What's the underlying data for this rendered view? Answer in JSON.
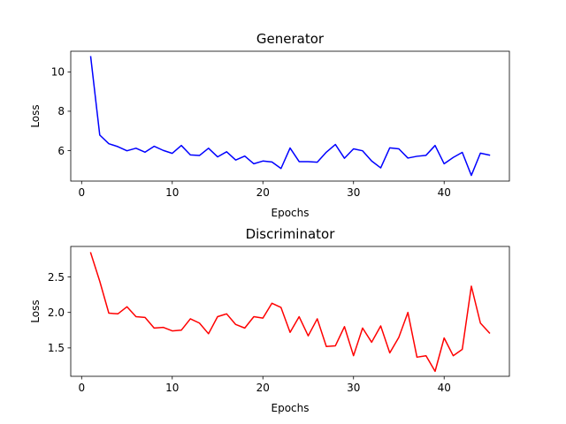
{
  "chart_data": [
    {
      "type": "line",
      "title": "Generator",
      "xlabel": "Epochs",
      "ylabel": "Loss",
      "xlim": [
        -1.2,
        47.2
      ],
      "ylim": [
        4.45,
        11.05
      ],
      "xticks": [
        0,
        10,
        20,
        30,
        40
      ],
      "yticks": [
        6,
        8,
        10
      ],
      "grid": false,
      "color": "#0000ff",
      "series": [
        {
          "x": [
            1,
            2,
            3,
            4,
            5,
            6,
            7,
            8,
            9,
            10,
            11,
            12,
            13,
            14,
            15,
            16,
            17,
            18,
            19,
            20,
            21,
            22,
            23,
            24,
            25,
            26,
            27,
            28,
            29,
            30,
            31,
            32,
            33,
            34,
            35,
            36,
            37,
            38,
            39,
            40,
            41,
            42,
            43,
            44,
            45
          ],
          "values": [
            10.77,
            6.79,
            6.35,
            6.2,
            5.99,
            6.12,
            5.92,
            6.22,
            6.01,
            5.86,
            6.26,
            5.78,
            5.75,
            6.12,
            5.68,
            5.94,
            5.52,
            5.72,
            5.33,
            5.47,
            5.42,
            5.09,
            6.13,
            5.44,
            5.44,
            5.41,
            5.92,
            6.31,
            5.61,
            6.09,
            5.99,
            5.47,
            5.12,
            6.14,
            6.09,
            5.62,
            5.71,
            5.76,
            6.26,
            5.33,
            5.65,
            5.91,
            4.74,
            5.87,
            5.77
          ]
        }
      ]
    },
    {
      "type": "line",
      "title": "Discriminator",
      "xlabel": "Epochs",
      "ylabel": "Loss",
      "xlim": [
        -1.2,
        47.2
      ],
      "ylim": [
        1.1,
        2.93
      ],
      "xticks": [
        0,
        10,
        20,
        30,
        40
      ],
      "yticks": [
        1.5,
        2.0,
        2.5
      ],
      "grid": false,
      "color": "#ff0000",
      "series": [
        {
          "x": [
            1,
            2,
            3,
            4,
            5,
            6,
            7,
            8,
            9,
            10,
            11,
            12,
            13,
            14,
            15,
            16,
            17,
            18,
            19,
            20,
            21,
            22,
            23,
            24,
            25,
            26,
            27,
            28,
            29,
            30,
            31,
            32,
            33,
            34,
            35,
            36,
            37,
            38,
            39,
            40,
            41,
            42,
            43,
            44,
            45
          ],
          "values": [
            2.84,
            2.44,
            1.99,
            1.98,
            2.08,
            1.94,
            1.93,
            1.78,
            1.79,
            1.74,
            1.75,
            1.91,
            1.85,
            1.7,
            1.94,
            1.98,
            1.83,
            1.78,
            1.94,
            1.92,
            2.13,
            2.07,
            1.72,
            1.94,
            1.67,
            1.91,
            1.52,
            1.53,
            1.8,
            1.39,
            1.78,
            1.58,
            1.81,
            1.43,
            1.65,
            2.0,
            1.37,
            1.39,
            1.17,
            1.64,
            1.39,
            1.48,
            2.37,
            1.85,
            1.71
          ]
        }
      ]
    }
  ]
}
